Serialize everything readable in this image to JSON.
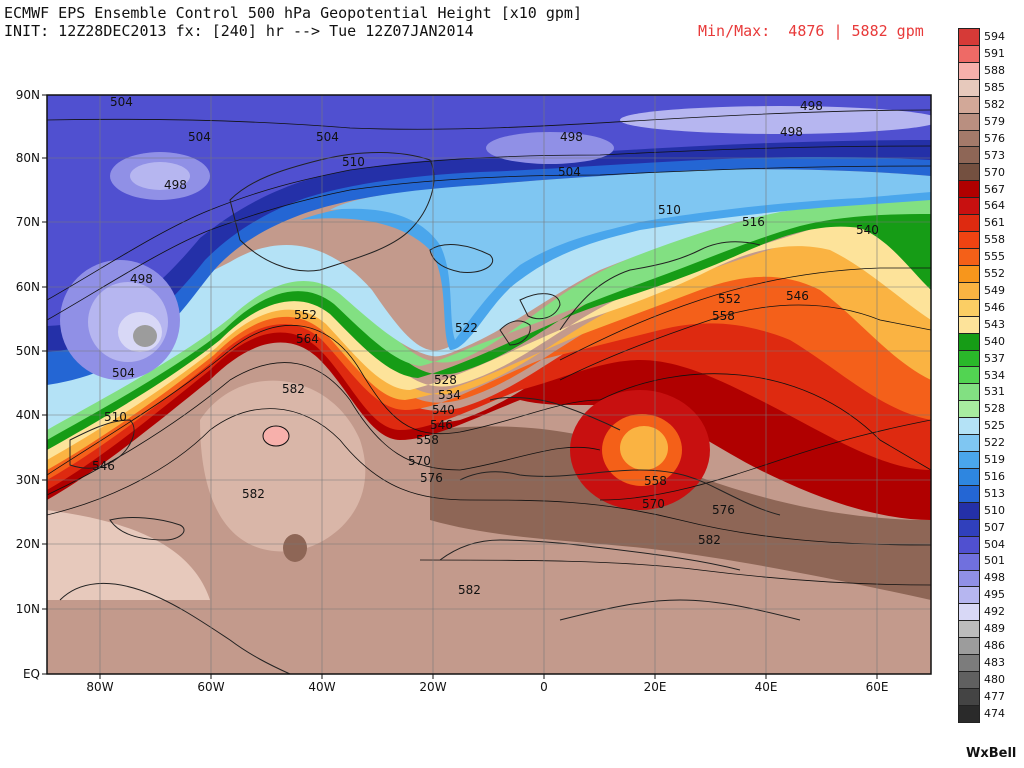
{
  "header": {
    "title": "ECMWF EPS Ensemble Control 500 hPa Geopotential Height [x10 gpm]",
    "subtitle": "INIT: 12Z28DEC2013 fx: [240] hr --> Tue 12Z07JAN2014",
    "minmax": "Min/Max:  4876 | 5882 gpm"
  },
  "axes": {
    "lat_ticks": [
      "90N",
      "80N",
      "70N",
      "60N",
      "50N",
      "40N",
      "30N",
      "20N",
      "10N",
      "EQ"
    ],
    "lon_ticks": [
      "80W",
      "60W",
      "40W",
      "20W",
      "0",
      "20E",
      "40E",
      "60E"
    ]
  },
  "legend": {
    "levels": [
      "594",
      "591",
      "588",
      "585",
      "582",
      "579",
      "576",
      "573",
      "570",
      "567",
      "564",
      "561",
      "558",
      "555",
      "552",
      "549",
      "546",
      "543",
      "540",
      "537",
      "534",
      "531",
      "528",
      "525",
      "522",
      "519",
      "516",
      "513",
      "510",
      "507",
      "504",
      "501",
      "498",
      "495",
      "492",
      "489",
      "486",
      "483",
      "480",
      "477",
      "474"
    ],
    "colors": [
      "#d63a37",
      "#ee6a66",
      "#f7b0ab",
      "#e7c9bc",
      "#d2a898",
      "#b98f80",
      "#a47a6a",
      "#8e6656",
      "#745040",
      "#b00000",
      "#c81010",
      "#de2a10",
      "#ef4312",
      "#f46018",
      "#f7961c",
      "#fab342",
      "#fbce64",
      "#fde39a",
      "#169c16",
      "#2ab82a",
      "#52d452",
      "#82e082",
      "#a8eca0",
      "#b4e2f6",
      "#7fc6f2",
      "#4aa6ec",
      "#2e86e0",
      "#2466d4",
      "#2430a8",
      "#3040bc",
      "#5050d0",
      "#7070de",
      "#9090e6",
      "#b6b6f0",
      "#d8d8f6",
      "#bcbcbc",
      "#9c9c9c",
      "#7c7c7c",
      "#606060",
      "#444444",
      "#2a2a2a"
    ]
  },
  "contour_labels": [
    "504",
    "504",
    "504",
    "498",
    "498",
    "498",
    "510",
    "498",
    "504",
    "510",
    "516",
    "540",
    "498",
    "522",
    "552",
    "546",
    "552",
    "558",
    "564",
    "582",
    "528",
    "534",
    "540",
    "546",
    "558",
    "570",
    "576",
    "504",
    "510",
    "546",
    "582",
    "558",
    "570",
    "576",
    "582",
    "582"
  ],
  "brand": "WxBell"
}
